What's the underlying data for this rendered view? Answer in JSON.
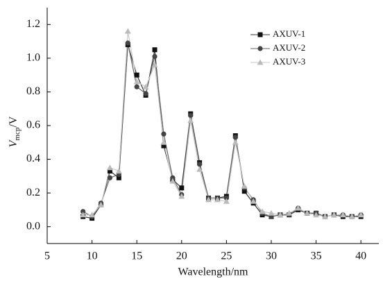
{
  "chart_data": {
    "type": "line",
    "xlabel": "Wavelength/nm",
    "ylabel": [
      "V",
      "mcp",
      "/V"
    ],
    "x": [
      9,
      10,
      11,
      12,
      13,
      14,
      15,
      16,
      17,
      18,
      19,
      20,
      21,
      22,
      23,
      24,
      25,
      26,
      27,
      28,
      29,
      30,
      31,
      32,
      33,
      34,
      35,
      36,
      37,
      38,
      39,
      40
    ],
    "series": [
      {
        "name": "AXUV-1",
        "color": "#111111",
        "line_color": "#333333",
        "marker": "square",
        "values": [
          0.06,
          0.05,
          0.13,
          0.33,
          0.29,
          1.08,
          0.9,
          0.78,
          1.05,
          0.48,
          0.28,
          0.23,
          0.67,
          0.38,
          0.17,
          0.17,
          0.18,
          0.54,
          0.21,
          0.14,
          0.07,
          0.06,
          0.07,
          0.07,
          0.1,
          0.08,
          0.08,
          0.06,
          0.07,
          0.06,
          0.06,
          0.06
        ]
      },
      {
        "name": "AXUV-2",
        "color": "#444444",
        "line_color": "#666666",
        "marker": "circle",
        "values": [
          0.09,
          0.06,
          0.14,
          0.29,
          0.31,
          1.09,
          0.83,
          0.79,
          1.01,
          0.55,
          0.29,
          0.19,
          0.66,
          0.37,
          0.17,
          0.17,
          0.17,
          0.53,
          0.23,
          0.16,
          0.08,
          0.06,
          0.07,
          0.07,
          0.11,
          0.08,
          0.08,
          0.06,
          0.07,
          0.07,
          0.06,
          0.07
        ]
      },
      {
        "name": "AXUV-3",
        "color": "#bbbbbb",
        "line_color": "#c8c8c8",
        "marker": "triangle",
        "values": [
          0.07,
          0.07,
          0.13,
          0.35,
          0.33,
          1.16,
          0.86,
          0.83,
          0.96,
          0.5,
          0.27,
          0.18,
          0.63,
          0.34,
          0.16,
          0.16,
          0.15,
          0.5,
          0.24,
          0.15,
          0.09,
          0.08,
          0.07,
          0.08,
          0.11,
          0.08,
          0.07,
          0.06,
          0.07,
          0.07,
          0.06,
          0.07
        ]
      }
    ],
    "xlim": [
      5,
      42
    ],
    "xticks": [
      5,
      10,
      15,
      20,
      25,
      30,
      35,
      40
    ],
    "ylim": [
      -0.1,
      1.3
    ],
    "yticks": [
      {
        "value": 0,
        "label": "0.0"
      },
      0.2,
      0.4,
      0.6,
      0.8,
      {
        "value": 1,
        "label": "1.0"
      },
      1.2
    ],
    "legend": "upper right"
  }
}
